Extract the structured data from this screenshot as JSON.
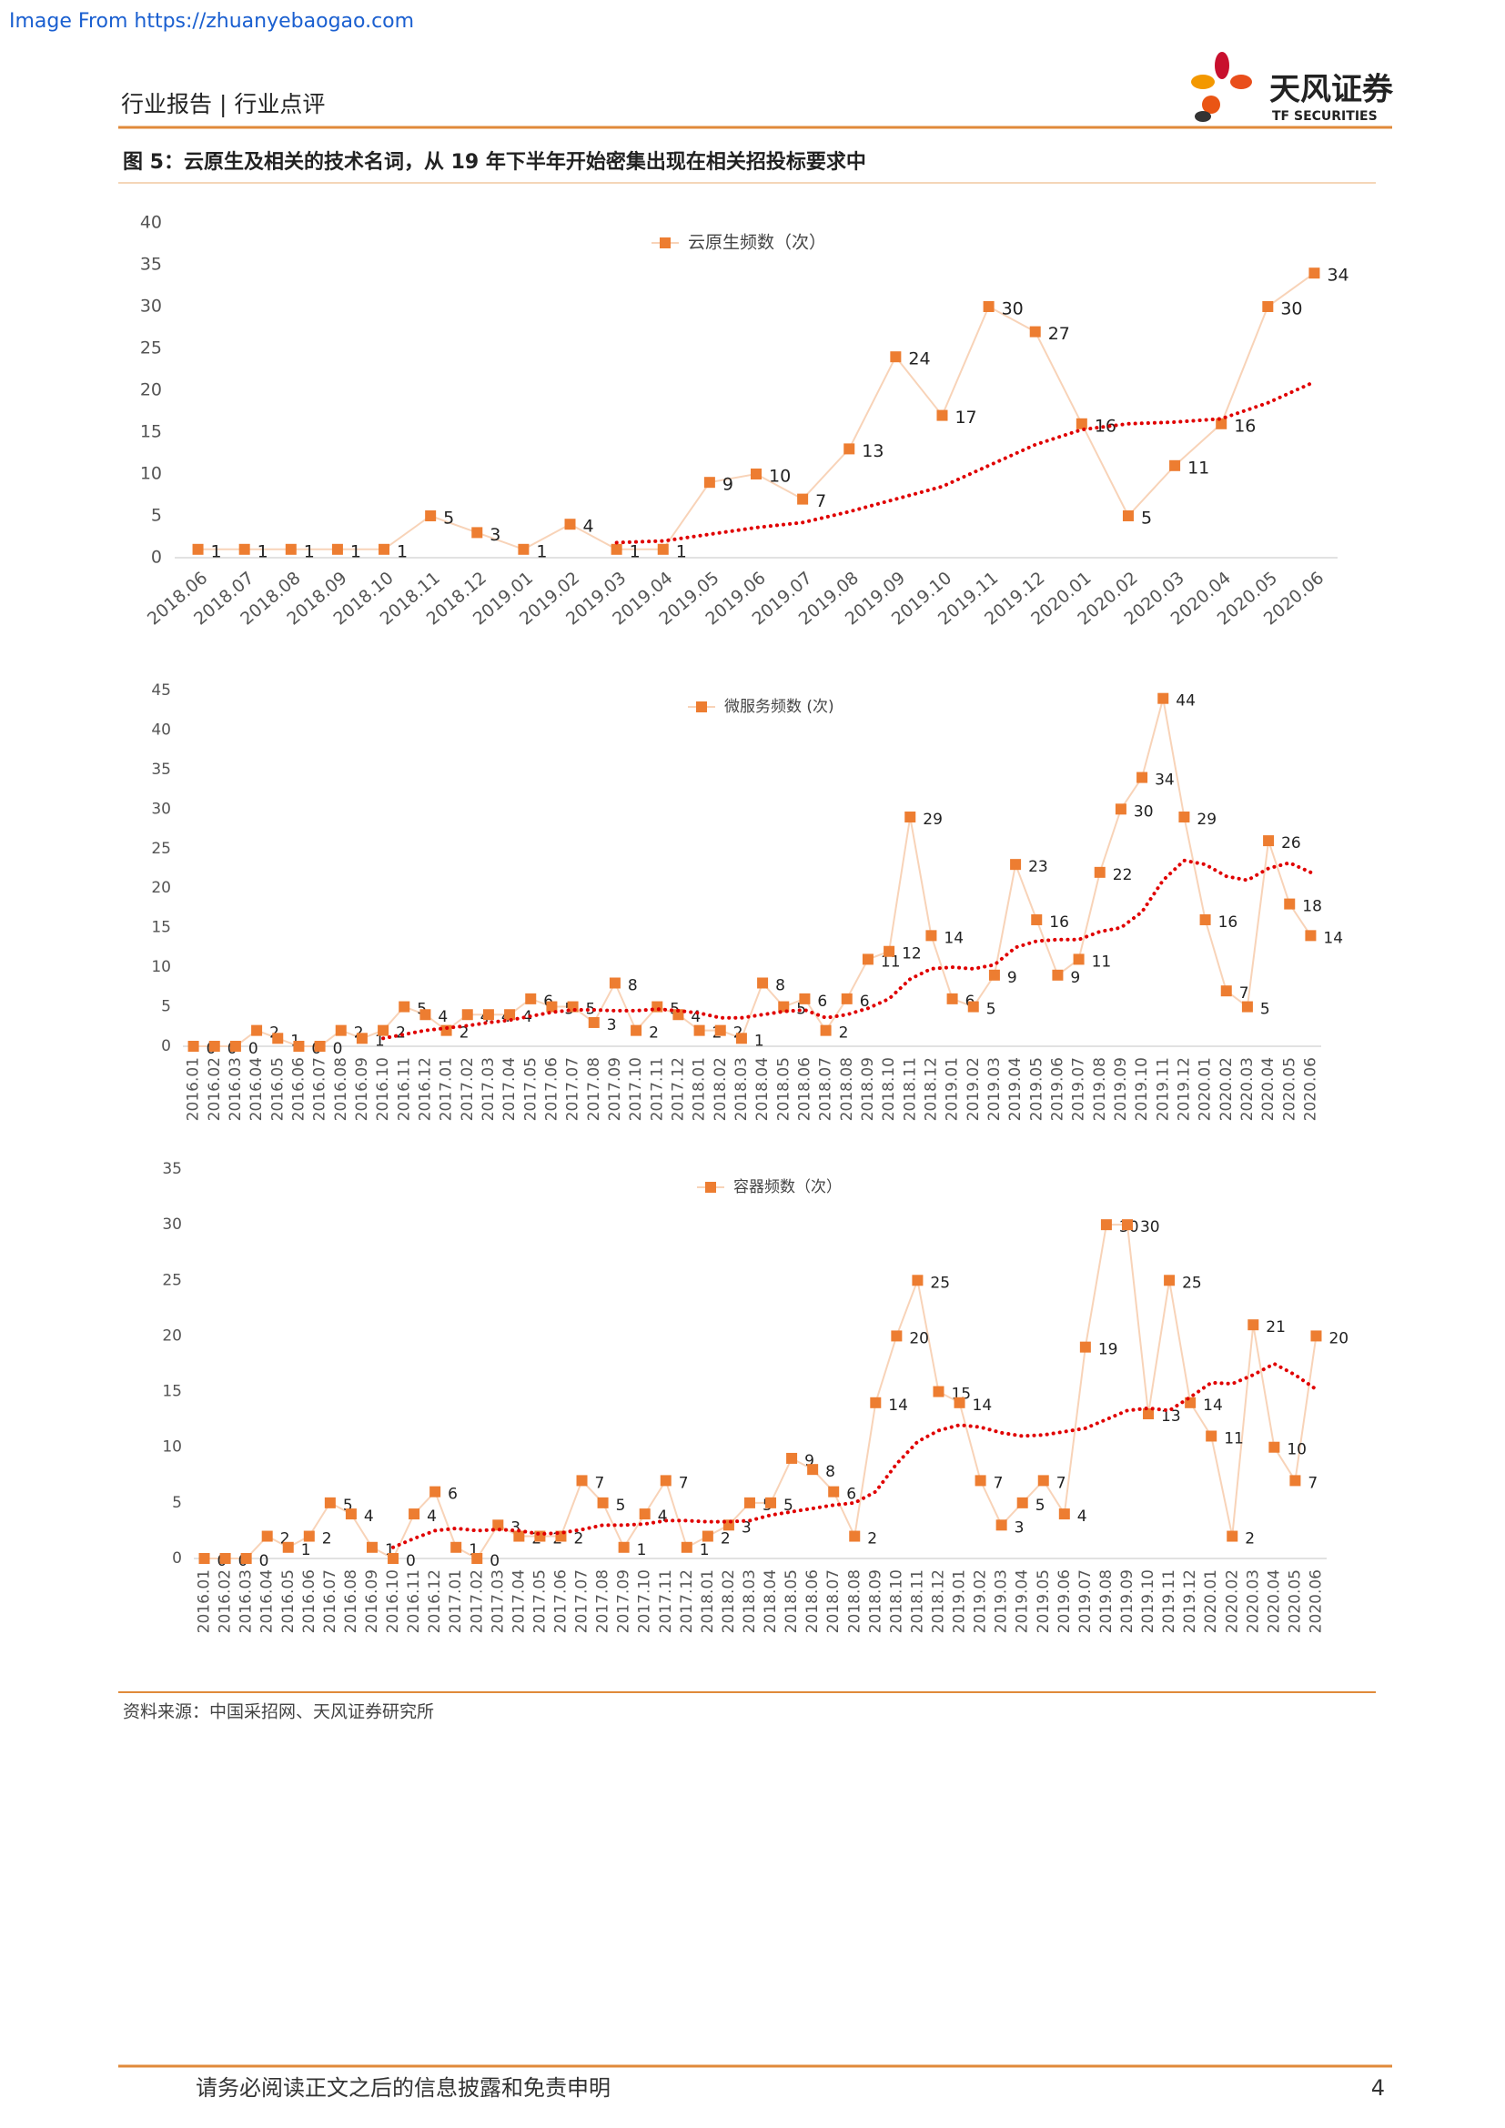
{
  "header": {
    "source_url": "Image From https://zhuanyebaogao.com",
    "section": "行业报告 | 行业点评",
    "brand": "天风证券",
    "brand_en": "TF SECURITIES"
  },
  "figure_title": "图 5：云原生及相关的技术名词，从 19 年下半年开始密集出现在相关招投标要求中",
  "source": "资料来源：中国采招网、天风证券研究所",
  "footer": {
    "disclaimer": "请务必阅读正文之后的信息披露和免责申明",
    "page": 4
  },
  "chart_data": [
    {
      "type": "line",
      "categories": [
        "2018.06",
        "2018.07",
        "2018.08",
        "2018.09",
        "2018.10",
        "2018.11",
        "2018.12",
        "2019.01",
        "2019.02",
        "2019.03",
        "2019.04",
        "2019.05",
        "2019.06",
        "2019.07",
        "2019.08",
        "2019.09",
        "2019.10",
        "2019.11",
        "2019.12",
        "2020.01",
        "2020.02",
        "2020.03",
        "2020.04",
        "2020.05",
        "2020.06"
      ],
      "series": [
        {
          "name": "云原生频数（次）",
          "color": "#ed7d31",
          "line_color": "#f8d3b8",
          "values": [
            1,
            1,
            1,
            1,
            1,
            5,
            3,
            1,
            4,
            1,
            1,
            9,
            10,
            7,
            13,
            24,
            17,
            30,
            27,
            16,
            5,
            11,
            16,
            30,
            34
          ]
        }
      ],
      "trendline": {
        "color": "#e00000",
        "values": [
          null,
          null,
          null,
          null,
          null,
          null,
          null,
          null,
          null,
          1.8,
          2,
          2.8,
          3.6,
          4.2,
          5.5,
          7,
          8.5,
          11,
          13.5,
          15.3,
          16,
          16.2,
          16.6,
          18.5,
          21
        ]
      },
      "ylim": [
        0,
        40
      ],
      "yticks": [
        0,
        5,
        10,
        15,
        20,
        25,
        30,
        35,
        40
      ],
      "grid": false,
      "legend": "top"
    },
    {
      "type": "line",
      "categories": [
        "2016.01",
        "2016.02",
        "2016.03",
        "2016.04",
        "2016.05",
        "2016.06",
        "2016.07",
        "2016.08",
        "2016.09",
        "2016.10",
        "2016.11",
        "2016.12",
        "2017.01",
        "2017.02",
        "2017.03",
        "2017.04",
        "2017.05",
        "2017.06",
        "2017.07",
        "2017.08",
        "2017.09",
        "2017.10",
        "2017.11",
        "2017.12",
        "2018.01",
        "2018.02",
        "2018.03",
        "2018.04",
        "2018.05",
        "2018.06",
        "2018.07",
        "2018.08",
        "2018.09",
        "2018.10",
        "2018.11",
        "2018.12",
        "2019.01",
        "2019.02",
        "2019.03",
        "2019.04",
        "2019.05",
        "2019.06",
        "2019.07",
        "2019.08",
        "2019.09",
        "2019.10",
        "2019.11",
        "2019.12",
        "2020.01",
        "2020.02",
        "2020.03",
        "2020.04",
        "2020.05",
        "2020.06"
      ],
      "series": [
        {
          "name": "微服务频数 (次)",
          "color": "#ed7d31",
          "line_color": "#f8d3b8",
          "values": [
            0,
            0,
            0,
            2,
            1,
            0,
            0,
            2,
            1,
            2,
            5,
            4,
            2,
            4,
            4,
            4,
            6,
            5,
            5,
            3,
            8,
            2,
            5,
            4,
            2,
            2,
            1,
            8,
            5,
            6,
            2,
            6,
            11,
            12,
            29,
            14,
            6,
            5,
            9,
            23,
            16,
            9,
            11,
            22,
            30,
            34,
            44,
            29,
            16,
            7,
            5,
            26,
            18,
            14
          ]
        }
      ],
      "trendline": {
        "color": "#e00000",
        "values": [
          null,
          null,
          null,
          null,
          null,
          null,
          null,
          null,
          null,
          1,
          1.5,
          2,
          2.3,
          2.6,
          3,
          3.3,
          3.8,
          4.3,
          4.6,
          4.6,
          4.5,
          4.5,
          4.7,
          4.5,
          4.2,
          3.6,
          3.6,
          4,
          4.4,
          4.6,
          3.6,
          4,
          4.8,
          6,
          8.5,
          9.8,
          10,
          9.8,
          10.3,
          12.5,
          13.3,
          13.5,
          13.5,
          14.5,
          15,
          17,
          21,
          23.5,
          23,
          21.5,
          21,
          22.5,
          23.2,
          22
        ]
      },
      "ylim": [
        0,
        45
      ],
      "yticks": [
        0,
        5,
        10,
        15,
        20,
        25,
        30,
        35,
        40,
        45
      ],
      "grid": false,
      "legend": "top"
    },
    {
      "type": "line",
      "categories": [
        "2016.01",
        "2016.02",
        "2016.03",
        "2016.04",
        "2016.05",
        "2016.06",
        "2016.07",
        "2016.08",
        "2016.09",
        "2016.10",
        "2016.11",
        "2016.12",
        "2017.01",
        "2017.02",
        "2017.03",
        "2017.04",
        "2017.05",
        "2017.06",
        "2017.07",
        "2017.08",
        "2017.09",
        "2017.10",
        "2017.11",
        "2017.12",
        "2018.01",
        "2018.02",
        "2018.03",
        "2018.04",
        "2018.05",
        "2018.06",
        "2018.07",
        "2018.08",
        "2018.09",
        "2018.10",
        "2018.11",
        "2018.12",
        "2019.01",
        "2019.02",
        "2019.03",
        "2019.04",
        "2019.05",
        "2019.06",
        "2019.07",
        "2019.08",
        "2019.09",
        "2019.10",
        "2019.11",
        "2019.12",
        "2020.01",
        "2020.02",
        "2020.03",
        "2020.04",
        "2020.05",
        "2020.06"
      ],
      "series": [
        {
          "name": "容器频数（次）",
          "color": "#ed7d31",
          "line_color": "#f8d3b8",
          "values": [
            0,
            0,
            0,
            2,
            1,
            2,
            5,
            4,
            1,
            0,
            4,
            6,
            1,
            0,
            3,
            2,
            2,
            2,
            7,
            5,
            1,
            4,
            7,
            1,
            2,
            3,
            5,
            5,
            9,
            8,
            6,
            2,
            14,
            20,
            25,
            15,
            14,
            7,
            3,
            5,
            7,
            4,
            19,
            30,
            30,
            13,
            25,
            14,
            11,
            2,
            21,
            10,
            7,
            20
          ]
        }
      ],
      "trendline": {
        "color": "#e00000",
        "values": [
          null,
          null,
          null,
          null,
          null,
          null,
          null,
          null,
          null,
          1,
          1.8,
          2.5,
          2.7,
          2.5,
          2.6,
          2.5,
          2.2,
          2.3,
          2.6,
          3,
          3,
          3.1,
          3.4,
          3.4,
          3.3,
          3.3,
          3.4,
          3.9,
          4.2,
          4.5,
          4.8,
          5,
          6,
          8.5,
          10.5,
          11.5,
          12,
          11.8,
          11.3,
          11,
          11.1,
          11.4,
          11.7,
          12.5,
          13.3,
          13.5,
          13.3,
          14.5,
          15.8,
          15.7,
          16.5,
          17.5,
          16.5,
          15.2
        ]
      },
      "ylim": [
        0,
        35
      ],
      "yticks": [
        0,
        5,
        10,
        15,
        20,
        25,
        30,
        35
      ],
      "grid": false,
      "legend": "top"
    }
  ]
}
